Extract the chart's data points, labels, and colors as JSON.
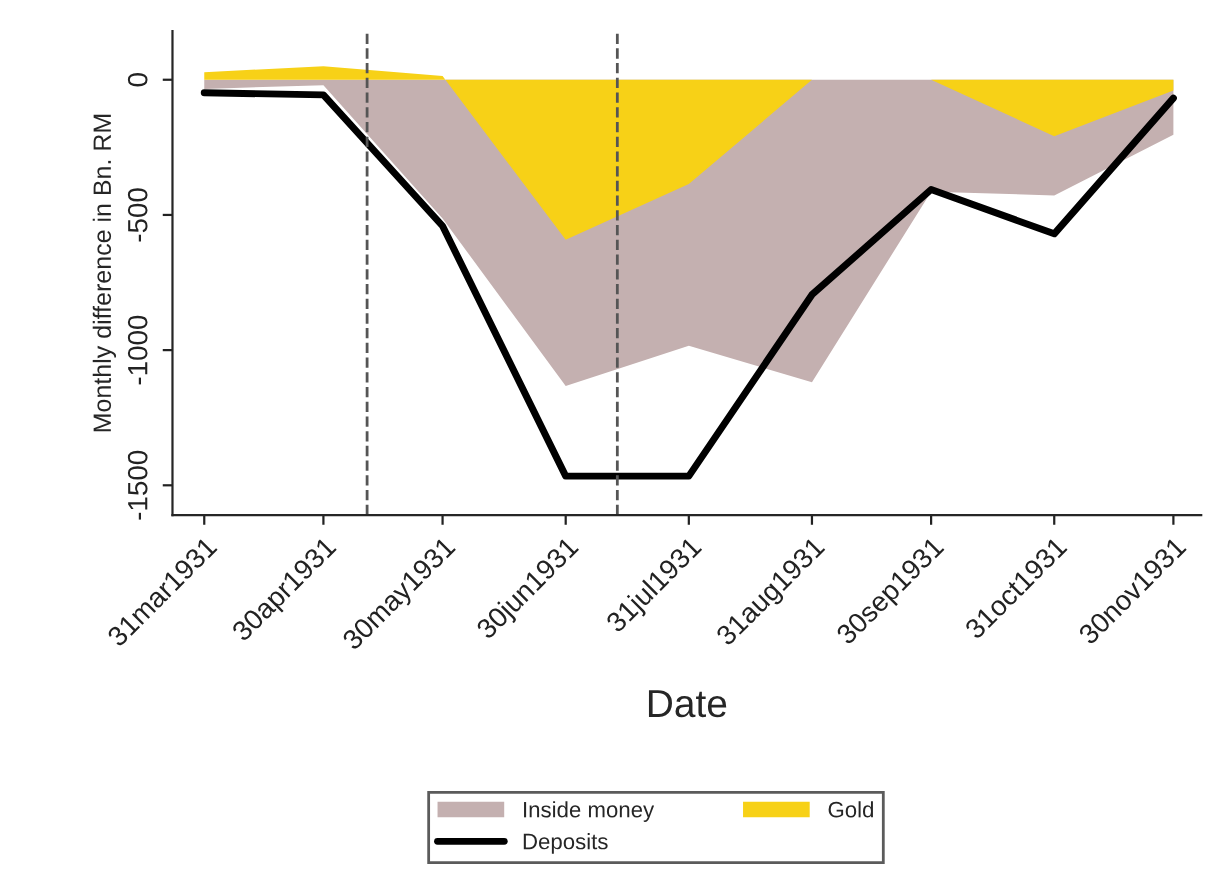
{
  "chart_data": {
    "type": "area",
    "xlabel": "Date",
    "ylabel": "Monthly difference in Bn. RM",
    "x": [
      "1931-03-31",
      "1931-04-30",
      "1931-05-30",
      "1931-06-30",
      "1931-07-31",
      "1931-08-31",
      "1931-09-30",
      "1931-10-31",
      "1931-11-30"
    ],
    "series": [
      {
        "name": "Inside money",
        "color": "#c4b0b0",
        "values": [
          -34,
          -20,
          -513,
          -1133,
          -984,
          -1119,
          -414,
          -428,
          -203
        ]
      },
      {
        "name": "Gold",
        "color": "#f7d117",
        "values": [
          28,
          50,
          14,
          -592,
          -386,
          0,
          0,
          -209,
          -40
        ]
      },
      {
        "name": "Deposits",
        "type": "line",
        "color": "#000000",
        "values": [
          -48,
          -56,
          -541,
          -1466,
          -1466,
          -795,
          -406,
          -570,
          -68
        ]
      }
    ],
    "xlim": [
      "1931-03-23",
      "1931-12-07"
    ],
    "xticks": [
      {
        "value": "1931-03-31",
        "label": "31mar1931"
      },
      {
        "value": "1931-04-30",
        "label": "30apr1931"
      },
      {
        "value": "1931-05-30",
        "label": "30may1931"
      },
      {
        "value": "1931-06-30",
        "label": "30jun1931"
      },
      {
        "value": "1931-07-31",
        "label": "31jul1931"
      },
      {
        "value": "1931-08-31",
        "label": "31aug1931"
      },
      {
        "value": "1931-09-30",
        "label": "30sep1931"
      },
      {
        "value": "1931-10-31",
        "label": "31oct1931"
      },
      {
        "value": "1931-11-30",
        "label": "30nov1931"
      }
    ],
    "ylim": [
      -1610,
      180
    ],
    "yticks": [
      -1500,
      -1000,
      -500,
      0
    ],
    "ref_lines": [
      {
        "axis": "x",
        "value": "1931-05-11",
        "color": "#555555",
        "line_style": "dashed"
      },
      {
        "axis": "x",
        "value": "1931-07-13",
        "color": "#555555",
        "line_style": "dashed"
      }
    ],
    "legend": "bottom",
    "grid": false
  }
}
